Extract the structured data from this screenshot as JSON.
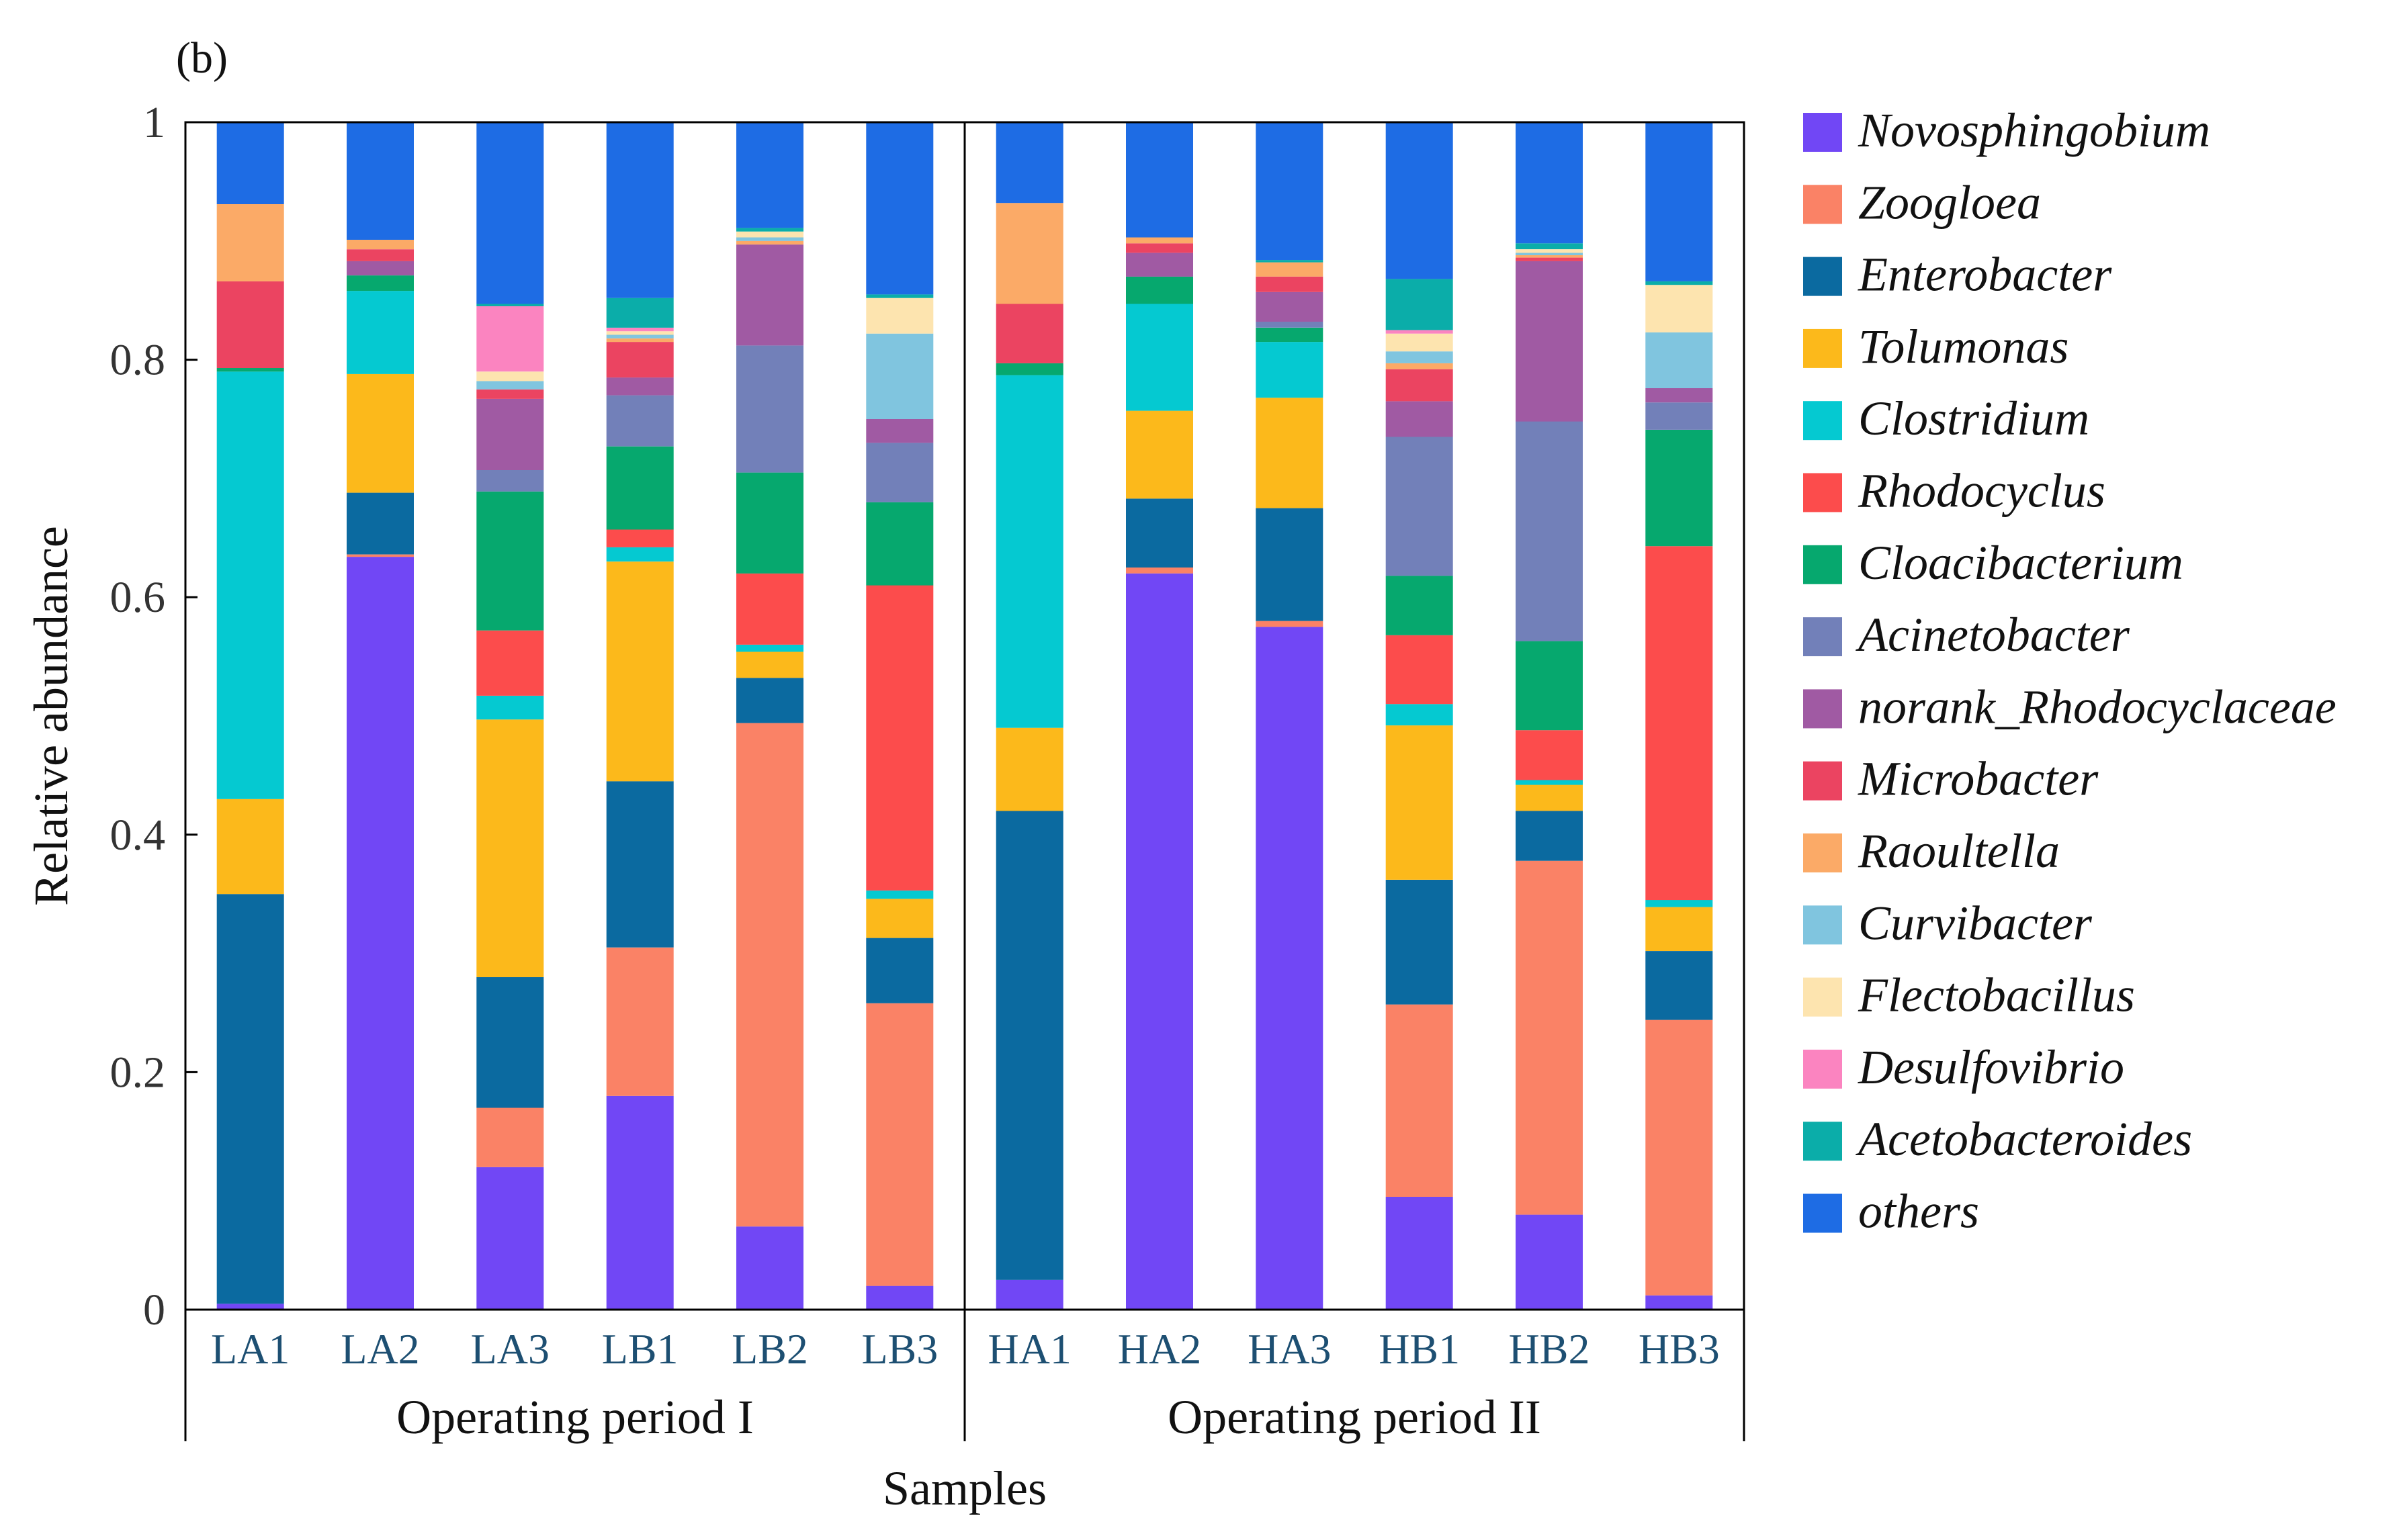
{
  "chart_data": {
    "type": "bar",
    "stacked": true,
    "panel_label": "(b)",
    "xlabel": "Samples",
    "ylabel": "Relative abundance",
    "ylim": [
      0,
      1
    ],
    "y_ticks": [
      "0",
      "0.2",
      "0.4",
      "0.6",
      "0.8",
      "1"
    ],
    "y_tick_values": [
      0,
      0.2,
      0.4,
      0.6,
      0.8,
      1
    ],
    "legend_position": "right",
    "groups": [
      {
        "name": "Operating period I",
        "categories": [
          "LA1",
          "LA2",
          "LA3",
          "LB1",
          "LB2",
          "LB3"
        ]
      },
      {
        "name": "Operating period II",
        "categories": [
          "HA1",
          "HA2",
          "HA3",
          "HB1",
          "HB2",
          "HB3"
        ]
      }
    ],
    "categories": [
      "LA1",
      "LA2",
      "LA3",
      "LB1",
      "LB2",
      "LB3",
      "HA1",
      "HA2",
      "HA3",
      "HB1",
      "HB2",
      "HB3"
    ],
    "series": [
      {
        "name": "Novosphingobium",
        "color": "#7147f5",
        "values": [
          0.005,
          0.634,
          0.12,
          0.18,
          0.07,
          0.02,
          0.025,
          0.62,
          0.575,
          0.095,
          0.08,
          0.012
        ]
      },
      {
        "name": "Zoogloea",
        "color": "#fa8266",
        "values": [
          0,
          0.002,
          0.05,
          0.125,
          0.424,
          0.238,
          0,
          0.005,
          0.005,
          0.162,
          0.298,
          0.232
        ]
      },
      {
        "name": "Enterobacter",
        "color": "#0b6aa0",
        "values": [
          0.345,
          0.052,
          0.11,
          0.14,
          0.038,
          0.055,
          0.395,
          0.058,
          0.095,
          0.105,
          0.042,
          0.058
        ]
      },
      {
        "name": "Tolumonas",
        "color": "#fcb91b",
        "values": [
          0.08,
          0.1,
          0.217,
          0.185,
          0.022,
          0.033,
          0.07,
          0.074,
          0.093,
          0.13,
          0.022,
          0.037
        ]
      },
      {
        "name": "Clostridium",
        "color": "#05c9d1",
        "values": [
          0.36,
          0.07,
          0.02,
          0.012,
          0.006,
          0.007,
          0.297,
          0.09,
          0.047,
          0.018,
          0.004,
          0.006
        ]
      },
      {
        "name": "Rhodocyclus",
        "color": "#fc4c4c",
        "values": [
          0,
          0,
          0.055,
          0.015,
          0.06,
          0.257,
          0,
          0,
          0,
          0.058,
          0.042,
          0.298
        ]
      },
      {
        "name": "Cloacibacterium",
        "color": "#06a86e",
        "values": [
          0.003,
          0.013,
          0.117,
          0.07,
          0.085,
          0.07,
          0.01,
          0.023,
          0.012,
          0.05,
          0.075,
          0.098
        ]
      },
      {
        "name": "Acinetobacter",
        "color": "#7280b9",
        "values": [
          0,
          0,
          0.018,
          0.043,
          0.107,
          0.05,
          0,
          0,
          0.005,
          0.117,
          0.185,
          0.023
        ]
      },
      {
        "name": "norank_Rhodocyclaceae",
        "color": "#a05aa3",
        "values": [
          0,
          0.012,
          0.06,
          0.015,
          0.085,
          0.02,
          0,
          0.02,
          0.025,
          0.03,
          0.135,
          0.012
        ]
      },
      {
        "name": "Microbacter",
        "color": "#eb4461",
        "values": [
          0.073,
          0.01,
          0.008,
          0.03,
          0,
          0,
          0.05,
          0.008,
          0.013,
          0.027,
          0.003,
          0
        ]
      },
      {
        "name": "Raoultella",
        "color": "#fbaa67",
        "values": [
          0.065,
          0.008,
          0,
          0.003,
          0.003,
          0,
          0.085,
          0.005,
          0.012,
          0.005,
          0.002,
          0
        ]
      },
      {
        "name": "Curvibacter",
        "color": "#80c5df",
        "values": [
          0,
          0,
          0.007,
          0.003,
          0.003,
          0.072,
          0,
          0,
          0,
          0.01,
          0.002,
          0.047
        ]
      },
      {
        "name": "Flectobacillus",
        "color": "#fde4af",
        "values": [
          0,
          0,
          0.008,
          0.003,
          0.005,
          0.03,
          0,
          0,
          0,
          0.015,
          0.003,
          0.04
        ]
      },
      {
        "name": "Desulfovibrio",
        "color": "#fb84c0",
        "values": [
          0,
          0,
          0.055,
          0.003,
          0,
          0,
          0,
          0,
          0,
          0.003,
          0,
          0
        ]
      },
      {
        "name": "Acetobacteroides",
        "color": "#0bada9",
        "values": [
          0,
          0,
          0.002,
          0.025,
          0.003,
          0.003,
          0,
          0,
          0.002,
          0.043,
          0.005,
          0.003
        ]
      },
      {
        "name": "others",
        "color": "#1e6ce4",
        "values": [
          0.069,
          0.099,
          0.153,
          0.148,
          0.089,
          0.145,
          0.068,
          0.097,
          0.116,
          0.132,
          0.102,
          0.134
        ]
      }
    ]
  }
}
